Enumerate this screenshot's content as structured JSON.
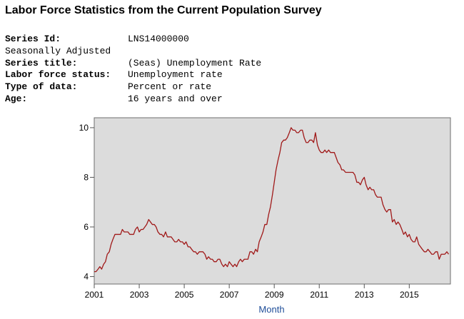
{
  "page": {
    "title": "Labor Force Statistics from the Current Population Survey"
  },
  "series_info": {
    "series_id_label": "Series Id:",
    "series_id": "LNS14000000",
    "seasonal_note": "Seasonally Adjusted",
    "series_title_label": "Series title:",
    "series_title": "(Seas) Unemployment Rate",
    "status_label": "Labor force status:",
    "status": "Unemployment rate",
    "type_label": "Type of data:",
    "type": "Percent or rate",
    "age_label": "Age:",
    "age": "16 years and over"
  },
  "colors": {
    "plot_background": "#dcdcdc",
    "line": "#a01919",
    "axis_label": "#1f4e99"
  },
  "chart_data": {
    "type": "line",
    "title": "",
    "xlabel": "Month",
    "ylabel": "",
    "xlim": [
      2001.0,
      2016.83
    ],
    "ylim": [
      3.7,
      10.4
    ],
    "x_ticks": [
      2001,
      2003,
      2005,
      2007,
      2009,
      2011,
      2013,
      2015
    ],
    "x_tick_labels": [
      "2001",
      "2003",
      "2005",
      "2007",
      "2009",
      "2011",
      "2013",
      "2015"
    ],
    "y_ticks": [
      4,
      6,
      8,
      10
    ],
    "y_tick_labels": [
      "4",
      "6",
      "8",
      "10"
    ],
    "grid": false,
    "legend": "none",
    "series": [
      {
        "points": [
          [
            2001.0,
            4.2
          ],
          [
            2001.08,
            4.2
          ],
          [
            2001.17,
            4.3
          ],
          [
            2001.25,
            4.4
          ],
          [
            2001.33,
            4.3
          ],
          [
            2001.42,
            4.5
          ],
          [
            2001.5,
            4.6
          ],
          [
            2001.58,
            4.9
          ],
          [
            2001.67,
            5.0
          ],
          [
            2001.75,
            5.3
          ],
          [
            2001.83,
            5.5
          ],
          [
            2001.92,
            5.7
          ],
          [
            2002.0,
            5.7
          ],
          [
            2002.08,
            5.7
          ],
          [
            2002.17,
            5.7
          ],
          [
            2002.25,
            5.9
          ],
          [
            2002.33,
            5.8
          ],
          [
            2002.42,
            5.8
          ],
          [
            2002.5,
            5.8
          ],
          [
            2002.58,
            5.7
          ],
          [
            2002.67,
            5.7
          ],
          [
            2002.75,
            5.7
          ],
          [
            2002.83,
            5.9
          ],
          [
            2002.92,
            6.0
          ],
          [
            2003.0,
            5.8
          ],
          [
            2003.08,
            5.9
          ],
          [
            2003.17,
            5.9
          ],
          [
            2003.25,
            6.0
          ],
          [
            2003.33,
            6.1
          ],
          [
            2003.42,
            6.3
          ],
          [
            2003.5,
            6.2
          ],
          [
            2003.58,
            6.1
          ],
          [
            2003.67,
            6.1
          ],
          [
            2003.75,
            6.0
          ],
          [
            2003.83,
            5.8
          ],
          [
            2003.92,
            5.7
          ],
          [
            2004.0,
            5.7
          ],
          [
            2004.08,
            5.6
          ],
          [
            2004.17,
            5.8
          ],
          [
            2004.25,
            5.6
          ],
          [
            2004.33,
            5.6
          ],
          [
            2004.42,
            5.6
          ],
          [
            2004.5,
            5.5
          ],
          [
            2004.58,
            5.4
          ],
          [
            2004.67,
            5.4
          ],
          [
            2004.75,
            5.5
          ],
          [
            2004.83,
            5.4
          ],
          [
            2004.92,
            5.4
          ],
          [
            2005.0,
            5.3
          ],
          [
            2005.08,
            5.4
          ],
          [
            2005.17,
            5.2
          ],
          [
            2005.25,
            5.2
          ],
          [
            2005.33,
            5.1
          ],
          [
            2005.42,
            5.0
          ],
          [
            2005.5,
            5.0
          ],
          [
            2005.58,
            4.9
          ],
          [
            2005.67,
            5.0
          ],
          [
            2005.75,
            5.0
          ],
          [
            2005.83,
            5.0
          ],
          [
            2005.92,
            4.9
          ],
          [
            2006.0,
            4.7
          ],
          [
            2006.08,
            4.8
          ],
          [
            2006.17,
            4.7
          ],
          [
            2006.25,
            4.7
          ],
          [
            2006.33,
            4.6
          ],
          [
            2006.42,
            4.6
          ],
          [
            2006.5,
            4.7
          ],
          [
            2006.58,
            4.7
          ],
          [
            2006.67,
            4.5
          ],
          [
            2006.75,
            4.4
          ],
          [
            2006.83,
            4.5
          ],
          [
            2006.92,
            4.4
          ],
          [
            2007.0,
            4.6
          ],
          [
            2007.08,
            4.5
          ],
          [
            2007.17,
            4.4
          ],
          [
            2007.25,
            4.5
          ],
          [
            2007.33,
            4.4
          ],
          [
            2007.42,
            4.6
          ],
          [
            2007.5,
            4.7
          ],
          [
            2007.58,
            4.6
          ],
          [
            2007.67,
            4.7
          ],
          [
            2007.75,
            4.7
          ],
          [
            2007.83,
            4.7
          ],
          [
            2007.92,
            5.0
          ],
          [
            2008.0,
            5.0
          ],
          [
            2008.08,
            4.9
          ],
          [
            2008.17,
            5.1
          ],
          [
            2008.25,
            5.0
          ],
          [
            2008.33,
            5.4
          ],
          [
            2008.42,
            5.6
          ],
          [
            2008.5,
            5.8
          ],
          [
            2008.58,
            6.1
          ],
          [
            2008.67,
            6.1
          ],
          [
            2008.75,
            6.5
          ],
          [
            2008.83,
            6.8
          ],
          [
            2008.92,
            7.3
          ],
          [
            2009.0,
            7.8
          ],
          [
            2009.08,
            8.3
          ],
          [
            2009.17,
            8.7
          ],
          [
            2009.25,
            9.0
          ],
          [
            2009.33,
            9.4
          ],
          [
            2009.42,
            9.5
          ],
          [
            2009.5,
            9.5
          ],
          [
            2009.58,
            9.6
          ],
          [
            2009.67,
            9.8
          ],
          [
            2009.75,
            10.0
          ],
          [
            2009.83,
            9.9
          ],
          [
            2009.92,
            9.9
          ],
          [
            2010.0,
            9.8
          ],
          [
            2010.08,
            9.8
          ],
          [
            2010.17,
            9.9
          ],
          [
            2010.25,
            9.9
          ],
          [
            2010.33,
            9.6
          ],
          [
            2010.42,
            9.4
          ],
          [
            2010.5,
            9.4
          ],
          [
            2010.58,
            9.5
          ],
          [
            2010.67,
            9.5
          ],
          [
            2010.75,
            9.4
          ],
          [
            2010.83,
            9.8
          ],
          [
            2010.92,
            9.3
          ],
          [
            2011.0,
            9.1
          ],
          [
            2011.08,
            9.0
          ],
          [
            2011.17,
            9.0
          ],
          [
            2011.25,
            9.1
          ],
          [
            2011.33,
            9.0
          ],
          [
            2011.42,
            9.1
          ],
          [
            2011.5,
            9.0
          ],
          [
            2011.58,
            9.0
          ],
          [
            2011.67,
            9.0
          ],
          [
            2011.75,
            8.8
          ],
          [
            2011.83,
            8.6
          ],
          [
            2011.92,
            8.5
          ],
          [
            2012.0,
            8.3
          ],
          [
            2012.08,
            8.3
          ],
          [
            2012.17,
            8.2
          ],
          [
            2012.25,
            8.2
          ],
          [
            2012.33,
            8.2
          ],
          [
            2012.42,
            8.2
          ],
          [
            2012.5,
            8.2
          ],
          [
            2012.58,
            8.1
          ],
          [
            2012.67,
            7.8
          ],
          [
            2012.75,
            7.8
          ],
          [
            2012.83,
            7.7
          ],
          [
            2012.92,
            7.9
          ],
          [
            2013.0,
            8.0
          ],
          [
            2013.08,
            7.7
          ],
          [
            2013.17,
            7.5
          ],
          [
            2013.25,
            7.6
          ],
          [
            2013.33,
            7.5
          ],
          [
            2013.42,
            7.5
          ],
          [
            2013.5,
            7.3
          ],
          [
            2013.58,
            7.2
          ],
          [
            2013.67,
            7.2
          ],
          [
            2013.75,
            7.2
          ],
          [
            2013.83,
            6.9
          ],
          [
            2013.92,
            6.7
          ],
          [
            2014.0,
            6.6
          ],
          [
            2014.08,
            6.7
          ],
          [
            2014.17,
            6.7
          ],
          [
            2014.25,
            6.2
          ],
          [
            2014.33,
            6.3
          ],
          [
            2014.42,
            6.1
          ],
          [
            2014.5,
            6.2
          ],
          [
            2014.58,
            6.1
          ],
          [
            2014.67,
            5.9
          ],
          [
            2014.75,
            5.7
          ],
          [
            2014.83,
            5.8
          ],
          [
            2014.92,
            5.6
          ],
          [
            2015.0,
            5.7
          ],
          [
            2015.08,
            5.5
          ],
          [
            2015.17,
            5.4
          ],
          [
            2015.25,
            5.4
          ],
          [
            2015.33,
            5.6
          ],
          [
            2015.42,
            5.3
          ],
          [
            2015.5,
            5.2
          ],
          [
            2015.58,
            5.1
          ],
          [
            2015.67,
            5.0
          ],
          [
            2015.75,
            5.0
          ],
          [
            2015.83,
            5.1
          ],
          [
            2015.92,
            5.0
          ],
          [
            2016.0,
            4.9
          ],
          [
            2016.08,
            4.9
          ],
          [
            2016.17,
            5.0
          ],
          [
            2016.25,
            5.0
          ],
          [
            2016.33,
            4.7
          ],
          [
            2016.42,
            4.9
          ],
          [
            2016.5,
            4.9
          ],
          [
            2016.58,
            4.9
          ],
          [
            2016.67,
            5.0
          ],
          [
            2016.75,
            4.9
          ]
        ]
      }
    ]
  }
}
